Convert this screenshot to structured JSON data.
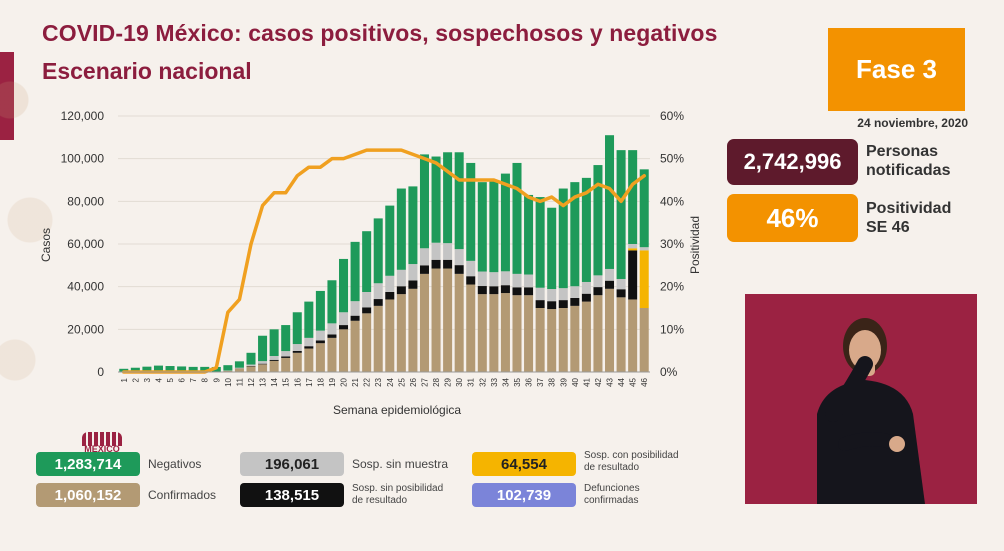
{
  "header": {
    "title": "COVID-19 México: casos positivos, sospechosos y negativos",
    "subtitle": "Escenario nacional",
    "phase": "Fase 3",
    "date": "24 noviembre, 2020"
  },
  "stats": {
    "personas_value": "2,742,996",
    "personas_label_1": "Personas",
    "personas_label_2": "notificadas",
    "positividad_value": "46%",
    "positividad_label_1": "Positividad",
    "positividad_label_2": "SE 46"
  },
  "legend": {
    "negativos_value": "1,283,714",
    "negativos_label": "Negativos",
    "confirmados_value": "1,060,152",
    "confirmados_label": "Confirmados",
    "sin_muestra_value": "196,061",
    "sin_muestra_label": "Sosp. sin muestra",
    "sin_posibilidad_value": "138,515",
    "sin_posibilidad_label_1": "Sosp. sin posibilidad",
    "sin_posibilidad_label_2": "de resultado",
    "con_posibilidad_value": "64,554",
    "con_posibilidad_label_1": "Sosp. con posibilidad",
    "con_posibilidad_label_2": "de resultado",
    "defunciones_value": "102,739",
    "defunciones_label_1": "Defunciones",
    "defunciones_label_2": "confirmadas",
    "logo_text": "MÉXICO"
  },
  "colors": {
    "confirmados": "#b39a74",
    "sin_posibilidad": "#111111",
    "sin_muestra": "#c4c4c4",
    "negativos": "#1e9a5a",
    "con_posibilidad": "#f5b400",
    "positividad_line": "#f0a020",
    "defunciones": "#7b84d9",
    "title": "#8c1d3e",
    "fase": "#f39200",
    "personas": "#5e1a2c"
  },
  "chart_data": {
    "type": "bar",
    "stacked": true,
    "xlabel": "Semana epidemiológica",
    "ylabel": "Casos",
    "y2label": "Positividad",
    "ylim": [
      0,
      120000
    ],
    "y2lim": [
      0,
      60
    ],
    "yticks": [
      "0",
      "20,000",
      "40,000",
      "60,000",
      "80,000",
      "100,000",
      "120,000"
    ],
    "y2ticks": [
      "0%",
      "10%",
      "20%",
      "30%",
      "40%",
      "50%",
      "60%"
    ],
    "categories": [
      "1",
      "2",
      "3",
      "4",
      "5",
      "6",
      "7",
      "8",
      "9",
      "10",
      "11",
      "12",
      "13",
      "14",
      "15",
      "16",
      "17",
      "18",
      "19",
      "20",
      "21",
      "22",
      "23",
      "24",
      "25",
      "26",
      "27",
      "28",
      "29",
      "30",
      "31",
      "32",
      "33",
      "34",
      "35",
      "36",
      "37",
      "38",
      "39",
      "40",
      "41",
      "42",
      "43",
      "44",
      "45",
      "46"
    ],
    "series": [
      {
        "name": "Confirmados",
        "color_key": "confirmados",
        "values": [
          0,
          0,
          0,
          0,
          0,
          0,
          0,
          0,
          50,
          600,
          1600,
          2600,
          3600,
          5200,
          6600,
          9000,
          11000,
          13500,
          16000,
          20000,
          24000,
          27500,
          31000,
          34000,
          36500,
          39000,
          46000,
          48500,
          48500,
          46000,
          41000,
          36500,
          36500,
          37000,
          36000,
          36000,
          30000,
          29500,
          30000,
          31000,
          33000,
          36000,
          39000,
          35000,
          34000,
          30000
        ]
      },
      {
        "name": "Sosp. sin posibilidad de resultado",
        "color_key": "sin_posibilidad",
        "values": [
          0,
          0,
          0,
          0,
          0,
          0,
          0,
          0,
          0,
          0,
          100,
          200,
          300,
          500,
          700,
          900,
          1100,
          1300,
          1600,
          2000,
          2400,
          2800,
          3200,
          3500,
          3700,
          3900,
          4000,
          4100,
          4100,
          4100,
          3900,
          3800,
          3700,
          3700,
          3700,
          3700,
          3700,
          3700,
          3700,
          3700,
          3700,
          3800,
          3800,
          3800,
          23000,
          0
        ]
      },
      {
        "name": "Sosp. con posibilidad de resultado",
        "color_key": "con_posibilidad",
        "values": [
          0,
          0,
          0,
          0,
          0,
          0,
          0,
          0,
          0,
          0,
          0,
          0,
          0,
          0,
          0,
          0,
          0,
          0,
          0,
          0,
          0,
          0,
          0,
          0,
          0,
          0,
          0,
          0,
          0,
          0,
          0,
          0,
          0,
          0,
          0,
          0,
          0,
          0,
          0,
          0,
          0,
          0,
          0,
          0,
          1000,
          27000
        ]
      },
      {
        "name": "Sosp. sin muestra",
        "color_key": "sin_muestra",
        "values": [
          0,
          0,
          0,
          0,
          0,
          0,
          0,
          0,
          0,
          100,
          300,
          700,
          1200,
          1800,
          2500,
          3200,
          3900,
          4600,
          5200,
          6000,
          6800,
          7200,
          7400,
          7600,
          7700,
          7700,
          8000,
          8000,
          7800,
          7500,
          7200,
          6800,
          6600,
          6500,
          6300,
          6000,
          5800,
          5700,
          5600,
          5500,
          5500,
          5500,
          5500,
          4800,
          2000,
          1500
        ]
      },
      {
        "name": "Negativos",
        "color_key": "negativos",
        "values": [
          1500,
          2000,
          2500,
          3000,
          2800,
          2600,
          2400,
          2400,
          2300,
          2500,
          3000,
          5500,
          11900,
          12500,
          12200,
          14900,
          17000,
          18600,
          20200,
          25000,
          27800,
          28500,
          30400,
          32900,
          38100,
          36400,
          44000,
          40400,
          42600,
          45400,
          45900,
          41900,
          43200,
          45800,
          52000,
          37300,
          42500,
          38100,
          46700,
          48800,
          48800,
          51700,
          62700,
          60400,
          44000,
          36500
        ]
      }
    ],
    "line": {
      "name": "Positividad",
      "axis": "y2",
      "values": [
        0,
        0,
        0,
        0,
        0,
        0,
        0,
        0,
        1,
        14,
        17,
        30,
        39,
        42,
        42,
        46,
        48,
        48,
        50,
        50,
        51,
        52,
        52,
        52,
        52,
        51,
        50,
        49,
        47,
        45,
        45,
        45,
        45,
        44,
        43,
        41,
        40,
        41,
        39,
        41,
        42,
        44,
        43,
        40,
        44,
        46
      ]
    }
  }
}
